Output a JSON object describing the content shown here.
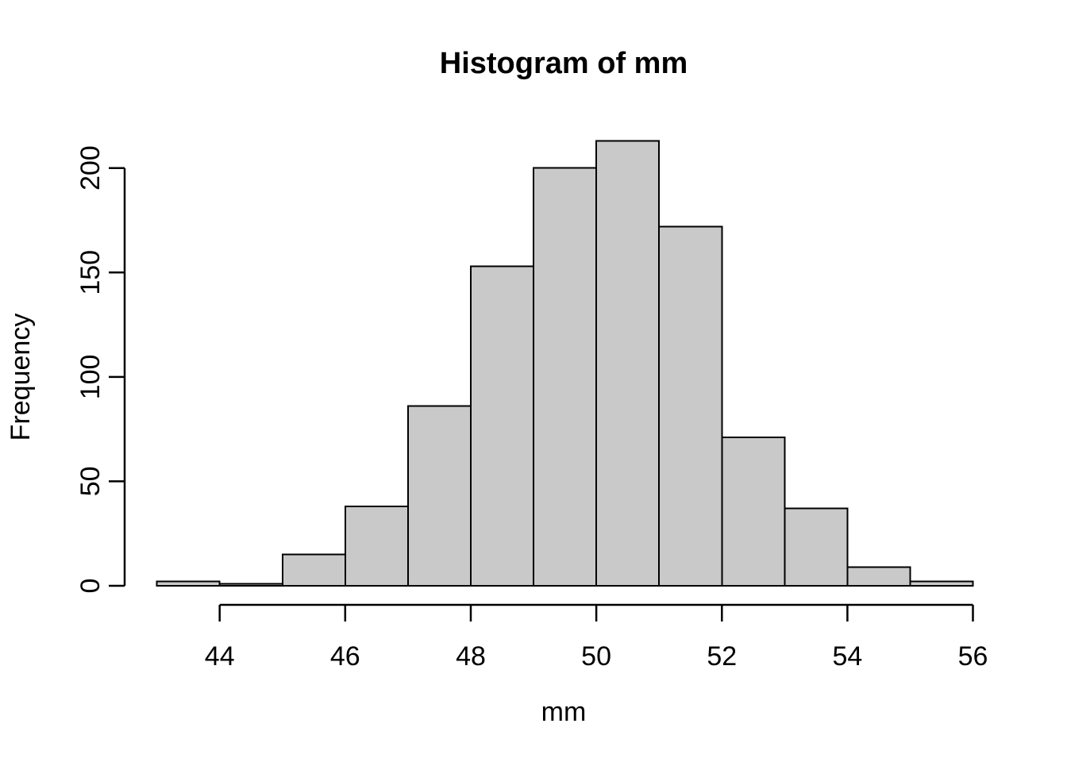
{
  "page": {
    "background_color": "#ffffff"
  },
  "chart_data": {
    "type": "bar",
    "subtype": "histogram",
    "title": "Histogram of mm",
    "xlabel": "mm",
    "ylabel": "Frequency",
    "bin_edges": [
      43,
      44,
      45,
      46,
      47,
      48,
      49,
      50,
      51,
      52,
      53,
      54,
      55,
      56
    ],
    "counts": [
      2,
      1,
      15,
      38,
      86,
      153,
      200,
      213,
      172,
      71,
      37,
      9,
      2
    ],
    "x_ticks": [
      44,
      46,
      48,
      50,
      52,
      54,
      56
    ],
    "y_ticks": [
      0,
      50,
      100,
      150,
      200
    ],
    "xlim": [
      42.48,
      56.52
    ],
    "ylim": [
      0,
      213
    ],
    "grid": false,
    "legend": false,
    "bar_fill_color": "#C9C9C9",
    "bar_stroke_color": "#000000",
    "axis_color": "#000000",
    "text_color": "#000000"
  }
}
